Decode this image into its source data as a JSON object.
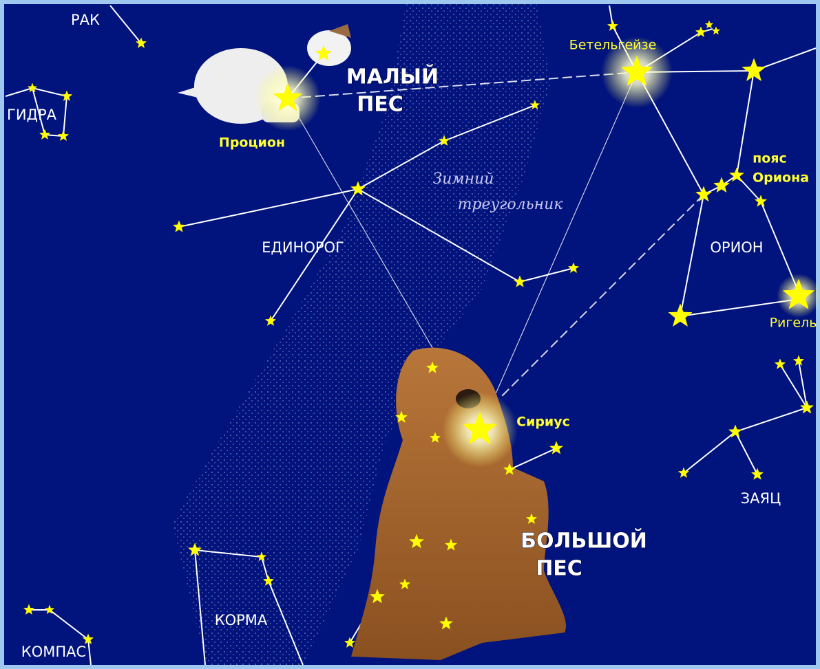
{
  "labels": {
    "rak": "РАК",
    "gidra": "ГИДРА",
    "malyi_pes": [
      "МАЛЫЙ",
      "ПЕС"
    ],
    "procyon": "Процион",
    "betelgeuse": "Бетельгейзе",
    "orion_belt": [
      "пояс",
      "Ориона"
    ],
    "winter_triangle": [
      "Зимний",
      "треугольник"
    ],
    "edinorog": "ЕДИНОРОГ",
    "orion": "ОРИОН",
    "rigel": "Ригель",
    "sirius": "Сириус",
    "zayats": "ЗАЯЦ",
    "bolshoi_pes": [
      "БОЛЬШОЙ",
      "ПЕС"
    ],
    "korma": "КОРМА",
    "kompas": "КОМПАС"
  }
}
